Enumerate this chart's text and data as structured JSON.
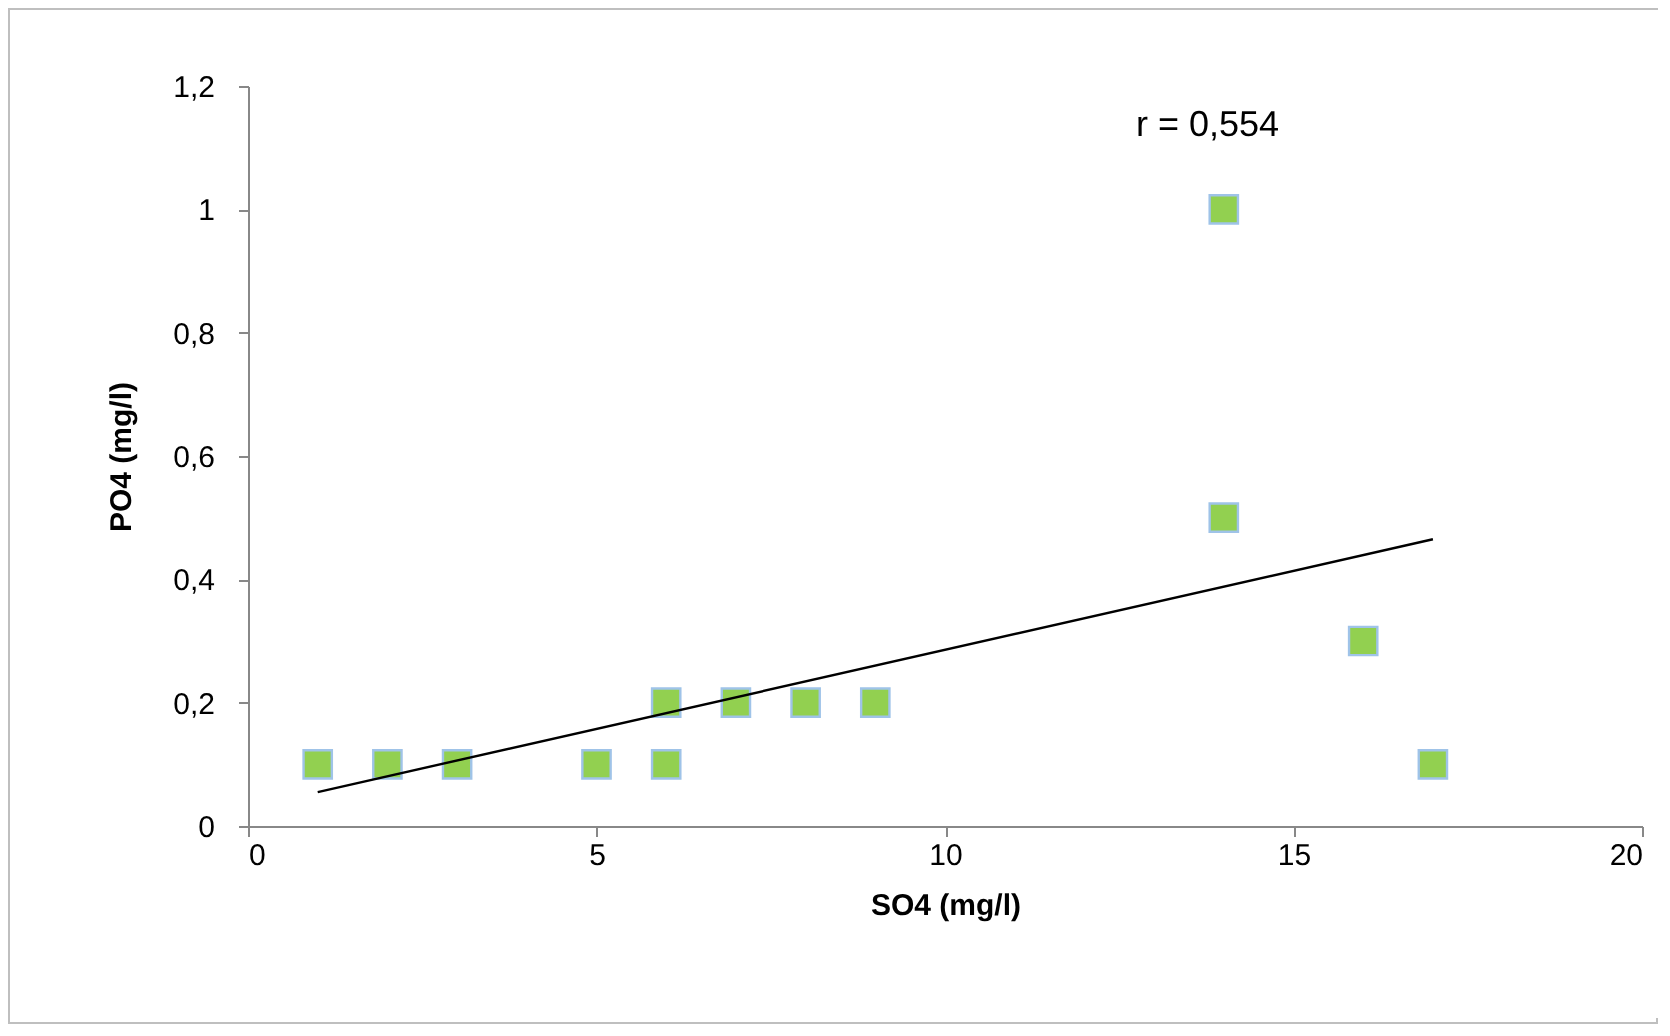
{
  "chart_data": {
    "type": "scatter",
    "xlabel": "SO4 (mg/l)",
    "ylabel": "PO4 (mg/l)",
    "annotations": [
      "r = 0,554"
    ],
    "xlim": [
      0,
      20
    ],
    "xticks": [
      0,
      5,
      10,
      15,
      20
    ],
    "ylim": [
      0,
      1.2
    ],
    "yticks": [
      0,
      {
        "value": 0.2,
        "label": "0,2"
      },
      {
        "value": 0.4,
        "label": "0,4"
      },
      {
        "value": 0.6,
        "label": "0,6"
      },
      {
        "value": 0.8,
        "label": "0,8"
      },
      1,
      {
        "value": 1.2,
        "label": "1,2"
      }
    ],
    "grid": false,
    "series": [
      {
        "marker": "square",
        "color": "#92d050",
        "x": [
          1,
          2,
          3,
          5,
          6,
          6,
          7,
          8,
          9,
          14,
          14,
          16,
          17
        ],
        "values": [
          0.1,
          0.1,
          0.1,
          0.1,
          0.2,
          0.1,
          0.2,
          0.2,
          0.2,
          1,
          0.5,
          0.3,
          0.1
        ]
      },
      {
        "type": "line",
        "color": "#000000",
        "x": [
          1,
          17
        ],
        "values": [
          0.055,
          0.465
        ]
      }
    ]
  }
}
